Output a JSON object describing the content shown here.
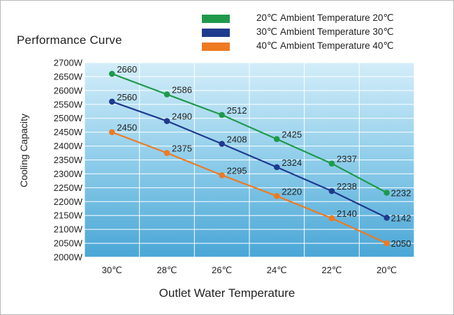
{
  "chart_data": {
    "type": "line",
    "title": "Performance Curve",
    "xlabel": "Outlet Water Temperature",
    "ylabel": "Cooling Capacity",
    "categories": [
      "30℃",
      "28℃",
      "26℃",
      "24℃",
      "22℃",
      "20℃"
    ],
    "y_ticks": [
      "2700W",
      "2650W",
      "2600W",
      "2550W",
      "2500W",
      "2450W",
      "2400W",
      "2350W",
      "2300W",
      "2250W",
      "2200W",
      "2150W",
      "2100W",
      "2050W",
      "2000W"
    ],
    "ylim": [
      2000,
      2700
    ],
    "grid": true,
    "legend_placement": "top-right",
    "series": [
      {
        "prefix": "20℃",
        "name": "Ambient Temperature 20℃",
        "color": "#1e9a4a",
        "values": [
          2660,
          2586,
          2512,
          2425,
          2337,
          2232
        ],
        "labels": [
          "2660",
          "2586",
          "2512",
          "2425",
          "2337",
          "2232"
        ]
      },
      {
        "prefix": "30℃",
        "name": "Ambient Temperature 30℃",
        "color": "#1f3a8e",
        "values": [
          2560,
          2490,
          2408,
          2324,
          2238,
          2142
        ],
        "labels": [
          "2560",
          "2490",
          "2408",
          "2324",
          "2238",
          "2142"
        ]
      },
      {
        "prefix": "40℃",
        "name": "Ambient Temperature 40℃",
        "color": "#ee7a22",
        "values": [
          2450,
          2375,
          2295,
          2220,
          2140,
          2050
        ],
        "labels": [
          "2450",
          "2375",
          "2295",
          "2220",
          "2140",
          "2050"
        ]
      }
    ]
  }
}
